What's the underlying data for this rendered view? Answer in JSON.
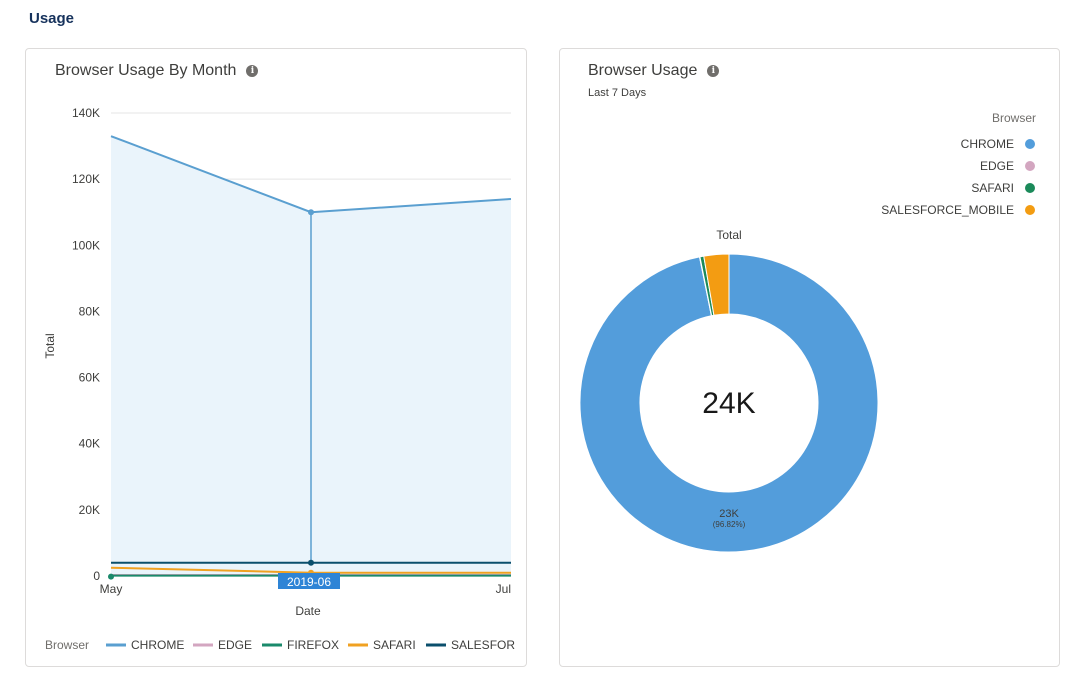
{
  "section": {
    "title": "Usage"
  },
  "colors": {
    "CHROME": "#5a9fd0",
    "EDGE": "#d3a6c0",
    "FIREFOX": "#1a8a6b",
    "SAFARI": "#f0a121",
    "SALESFORCE": "#0b4f6c",
    "SALESFORCE_MOBILE": "#f39c12",
    "donut_chrome": "#539ddb",
    "donut_safari": "#1b8a5a",
    "area_fill": "#eaf4fb",
    "tooltip_bg": "#2e84d6"
  },
  "line_chart": {
    "title": "Browser Usage By Month",
    "info_icon": "info-icon",
    "tooltip": "2019-06",
    "legend_title": "Browser",
    "legend_items": [
      "CHROME",
      "EDGE",
      "FIREFOX",
      "SAFARI",
      "SALESFOR"
    ]
  },
  "donut_chart": {
    "title": "Browser Usage",
    "subtitle": "Last 7 Days",
    "info_icon": "info-icon",
    "legend_title": "Browser",
    "legend_items": [
      "CHROME",
      "EDGE",
      "SAFARI",
      "SALESFORCE_MOBILE"
    ],
    "center_label": "Total",
    "center_value": "24K",
    "slice_label_value": "23K",
    "slice_label_pct": "(96.82%)"
  },
  "chart_data": [
    {
      "type": "area",
      "title": "Browser Usage By Month",
      "xlabel": "Date",
      "ylabel": "Total",
      "categories": [
        "May",
        "Jun",
        "Jul"
      ],
      "x_tick_labels": [
        "May",
        "Jun",
        "Jul"
      ],
      "ylim": [
        0,
        140000
      ],
      "y_ticks": [
        0,
        20000,
        40000,
        60000,
        80000,
        100000,
        120000,
        140000
      ],
      "y_tick_labels": [
        "0",
        "20K",
        "40K",
        "60K",
        "80K",
        "100K",
        "120K",
        "140K"
      ],
      "grid": true,
      "legend": "bottom",
      "series": [
        {
          "name": "CHROME",
          "values": [
            133000,
            110000,
            114000
          ]
        },
        {
          "name": "EDGE",
          "values": [
            300,
            300,
            300
          ]
        },
        {
          "name": "FIREFOX",
          "values": [
            100,
            100,
            100
          ]
        },
        {
          "name": "SAFARI",
          "values": [
            2500,
            1000,
            1000
          ]
        },
        {
          "name": "SALESFORCE",
          "values": [
            4000,
            4000,
            4000
          ]
        }
      ]
    },
    {
      "type": "pie",
      "title": "Browser Usage",
      "subtitle": "Last 7 Days",
      "legend": "top-right",
      "categories": [
        "CHROME",
        "EDGE",
        "SAFARI",
        "SALESFORCE_MOBILE"
      ],
      "values": [
        23240,
        10,
        100,
        650
      ],
      "total": 24000
    }
  ]
}
